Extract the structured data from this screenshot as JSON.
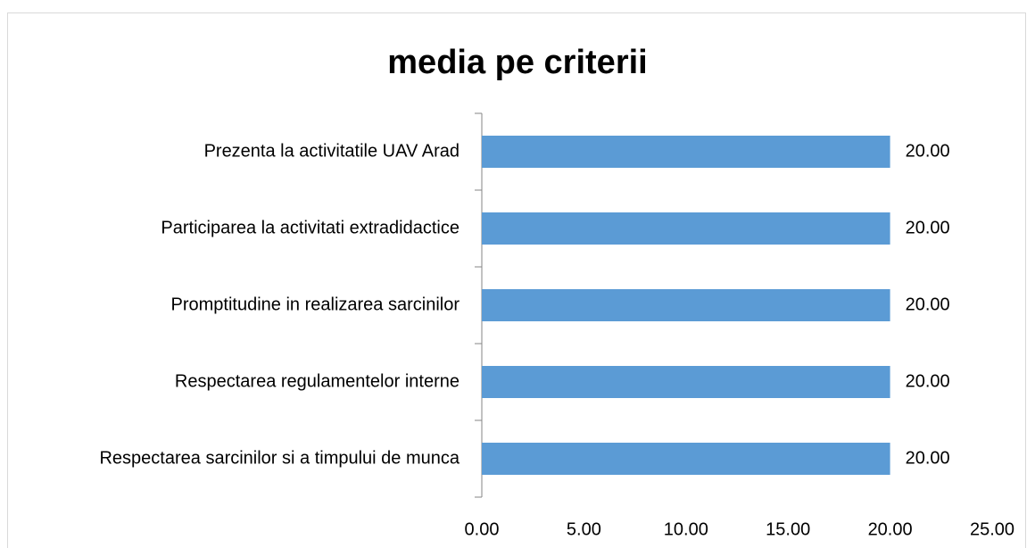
{
  "chart_data": {
    "type": "bar",
    "orientation": "horizontal",
    "title": "media pe criterii",
    "categories": [
      "Prezenta la activitatile UAV Arad",
      "Participarea la activitati extradidactice",
      "Promptitudine in realizarea sarcinilor",
      "Respectarea regulamentelor interne",
      "Respectarea sarcinilor si a timpului de munca"
    ],
    "values": [
      20,
      20,
      20,
      20,
      20
    ],
    "value_labels": [
      "20.00",
      "20.00",
      "20.00",
      "20.00",
      "20.00"
    ],
    "color": "#5b9bd5",
    "xlim": [
      0,
      25
    ],
    "xticks": [
      {
        "value": 0,
        "label": "0.00"
      },
      {
        "value": 5,
        "label": "5.00"
      },
      {
        "value": 10,
        "label": "10.00"
      },
      {
        "value": 15,
        "label": "15.00"
      },
      {
        "value": 20,
        "label": "20.00"
      },
      {
        "value": 25,
        "label": "25.00"
      }
    ],
    "grid": false
  }
}
